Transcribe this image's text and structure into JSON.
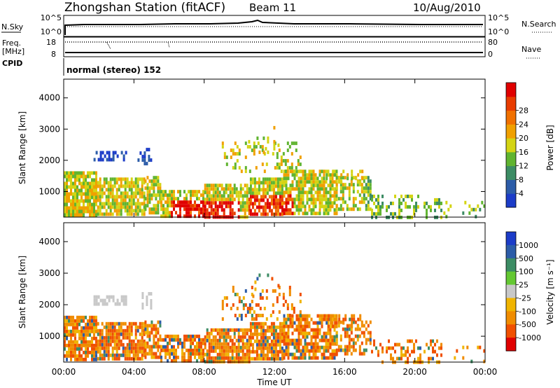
{
  "header": {
    "station": "Zhongshan Station (fitACF)",
    "beam": "Beam 11",
    "date": "10/Aug/2010"
  },
  "noise_panel": {
    "left_label": "N.Sky",
    "right_label": "N.Search",
    "left_ticks": [
      "10^5",
      "10^0"
    ],
    "right_ticks": [
      "10^5",
      "10^0"
    ]
  },
  "freq_panel": {
    "left_label_1": "Freq.",
    "left_label_2": "[MHz]",
    "right_label": "Nave",
    "left_ticks": [
      "18",
      "8"
    ],
    "right_ticks": [
      "80",
      "0"
    ]
  },
  "cpid_panel": {
    "label": "CPID",
    "text": "normal (stereo) 152"
  },
  "colors": {
    "power": [
      "#1c3cc8",
      "#2c5ca8",
      "#3c8c64",
      "#60b430",
      "#d4d414",
      "#f0a000",
      "#f07000",
      "#e83c00",
      "#e00000"
    ],
    "velocity": [
      "#e00000",
      "#f05000",
      "#f08c00",
      "#f0b400",
      "#c8c8c8",
      "#64c832",
      "#3c8c64",
      "#2c5ca8",
      "#1c3cc8"
    ]
  },
  "chart_data": [
    {
      "type": "heatmap",
      "name": "Power",
      "ylabel": "Slant Range [km]",
      "yticks": [
        1000,
        2000,
        3000,
        4000
      ],
      "ylim": [
        180,
        4600
      ],
      "xlim": [
        0,
        24
      ],
      "colorbar_label": "Power [dB]",
      "colorbar_ticks": [
        "4",
        "8",
        "12",
        "16",
        "20",
        "24",
        "28"
      ]
    },
    {
      "type": "heatmap",
      "name": "Velocity",
      "ylabel": "Slant Range [km]",
      "yticks": [
        1000,
        2000,
        3000,
        4000
      ],
      "ylim": [
        180,
        4600
      ],
      "xlim": [
        0,
        24
      ],
      "colorbar_label": "Velocity [m s⁻¹]",
      "colorbar_ticks": [
        "1000",
        "500",
        "100",
        "25",
        "-25",
        "-100",
        "-500",
        "-1000"
      ]
    }
  ],
  "time_axis": {
    "ticks": [
      "00:00",
      "04:00",
      "08:00",
      "12:00",
      "16:00",
      "20:00",
      "00:00"
    ],
    "label": "Time UT"
  }
}
